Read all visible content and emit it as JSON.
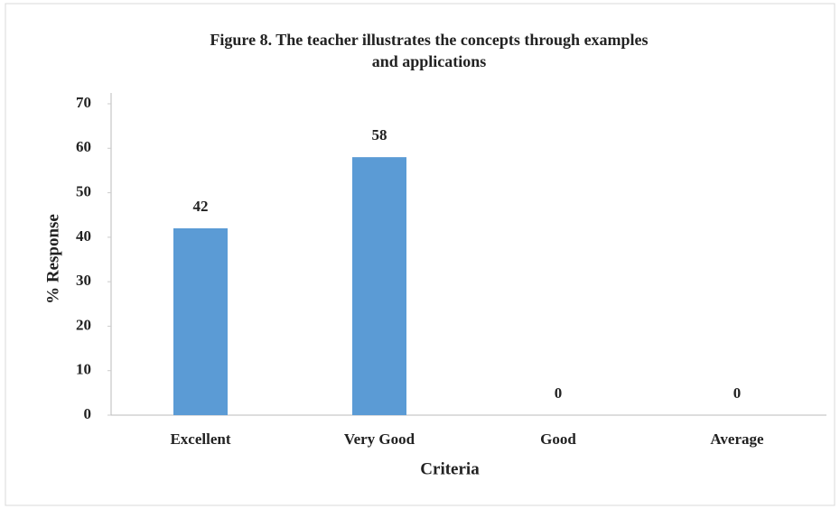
{
  "chart_data": {
    "type": "bar",
    "title": [
      "Figure 8. The teacher illustrates the concepts through examples",
      "and applications"
    ],
    "categories": [
      "Excellent",
      "Very Good",
      "Good",
      "Average"
    ],
    "values": [
      42,
      58,
      0,
      0
    ],
    "color": "#5b9bd5",
    "x_label": "Criteria",
    "y_label": "% Response",
    "ylim": [
      0,
      70
    ],
    "yticks": [
      0,
      10,
      20,
      30,
      40,
      50,
      60,
      70
    ],
    "grid": false
  }
}
